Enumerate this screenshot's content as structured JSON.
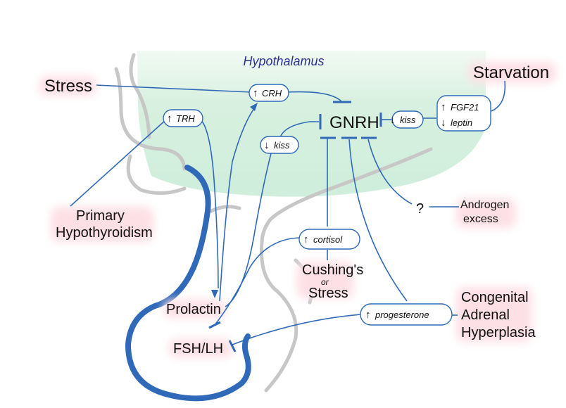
{
  "title_region": "Hypothalamus",
  "nodes": {
    "gnrh": "GNRH",
    "stress": "Stress",
    "starvation": "Starvation",
    "primary_hypothyroidism_1": "Primary",
    "primary_hypothyroidism_2": "Hypothyroidism",
    "prolactin": "Prolactin",
    "fsh_lh": "FSH/LH",
    "question": "?",
    "androgen_1": "Androgen",
    "androgen_2": "excess",
    "cushings": "Cushing's",
    "or": "or",
    "stress2": "Stress",
    "cah_1": "Congenital",
    "cah_2": "Adrenal",
    "cah_3": "Hyperplasia"
  },
  "pills": {
    "crh": {
      "arrow": "↑",
      "text": "CRH"
    },
    "trh": {
      "arrow": "↑",
      "text": "TRH"
    },
    "kiss_left": {
      "arrow": "↓",
      "text": "kiss"
    },
    "kiss_right": {
      "arrow": "↓",
      "text": "kiss"
    },
    "fgf21": {
      "arrow": "↑",
      "text": "FGF21"
    },
    "leptin": {
      "arrow": "↓",
      "text": "leptin"
    },
    "cortisol": {
      "arrow": "↑",
      "text": "cortisol"
    },
    "progesterone": {
      "arrow": "↑",
      "text": "progesterone"
    }
  },
  "colors": {
    "hypothalamus_fill": "#def2e4",
    "pathway_blue": "#2f69b8",
    "pituitary_outline": "#2f69b8",
    "anatomy_gray": "#c7c7c7",
    "label_glow": "#fde0e6",
    "title_blue": "#2b2f8f"
  }
}
